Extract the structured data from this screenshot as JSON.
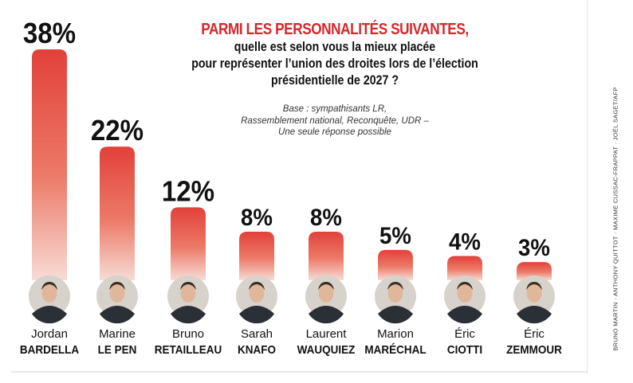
{
  "title": {
    "highlight": "PARMI LES PERSONNALITÉS SUIVANTES,",
    "lines": [
      "quelle est selon vous la mieux placée",
      "pour représenter l’union des droites lors de l’élection",
      "présidentielle de 2027 ?"
    ]
  },
  "base_note": {
    "lines": [
      "Base : sympathisants LR,",
      "Rassemblement national, Reconquête, UDR –",
      "Une seule réponse possible"
    ]
  },
  "photo_credit": "BRUNO MARTIN · ANTHONY QUITTOT · MAXIME CUSSAC-FRAPPAT · JOËL SAGET/AFP",
  "colors": {
    "bar_top": "#e2413a",
    "bar_bottom": "#f7dcd6",
    "title_red": "#d7262b",
    "text": "#111111"
  },
  "chart_data": {
    "type": "bar",
    "title": "PARMI LES PERSONNALITÉS SUIVANTES, quelle est selon vous la mieux placée pour représenter l’union des droites lors de l’élection présidentielle de 2027 ?",
    "unit": "%",
    "ylim": [
      0,
      38
    ],
    "categories": [
      "Jordan BARDELLA",
      "Marine LE PEN",
      "Bruno RETAILLEAU",
      "Sarah KNAFO",
      "Laurent WAUQUIEZ",
      "Marion MARÉCHAL",
      "Éric CIOTTI",
      "Éric ZEMMOUR"
    ],
    "values": [
      38,
      22,
      12,
      8,
      8,
      5,
      4,
      3
    ],
    "value_labels": [
      "38%",
      "22%",
      "12%",
      "8%",
      "8%",
      "5%",
      "4%",
      "3%"
    ],
    "people": [
      {
        "first": "Jordan",
        "last": "BARDELLA",
        "value": 38,
        "label": "38%"
      },
      {
        "first": "Marine",
        "last": "LE PEN",
        "value": 22,
        "label": "22%"
      },
      {
        "first": "Bruno",
        "last": "RETAILLEAU",
        "value": 12,
        "label": "12%"
      },
      {
        "first": "Sarah",
        "last": "KNAFO",
        "value": 8,
        "label": "8%"
      },
      {
        "first": "Laurent",
        "last": "WAUQUIEZ",
        "value": 8,
        "label": "8%"
      },
      {
        "first": "Marion",
        "last": "MARÉCHAL",
        "value": 5,
        "label": "5%"
      },
      {
        "first": "Éric",
        "last": "CIOTTI",
        "value": 4,
        "label": "4%"
      },
      {
        "first": "Éric",
        "last": "ZEMMOUR",
        "value": 3,
        "label": "3%"
      }
    ]
  }
}
